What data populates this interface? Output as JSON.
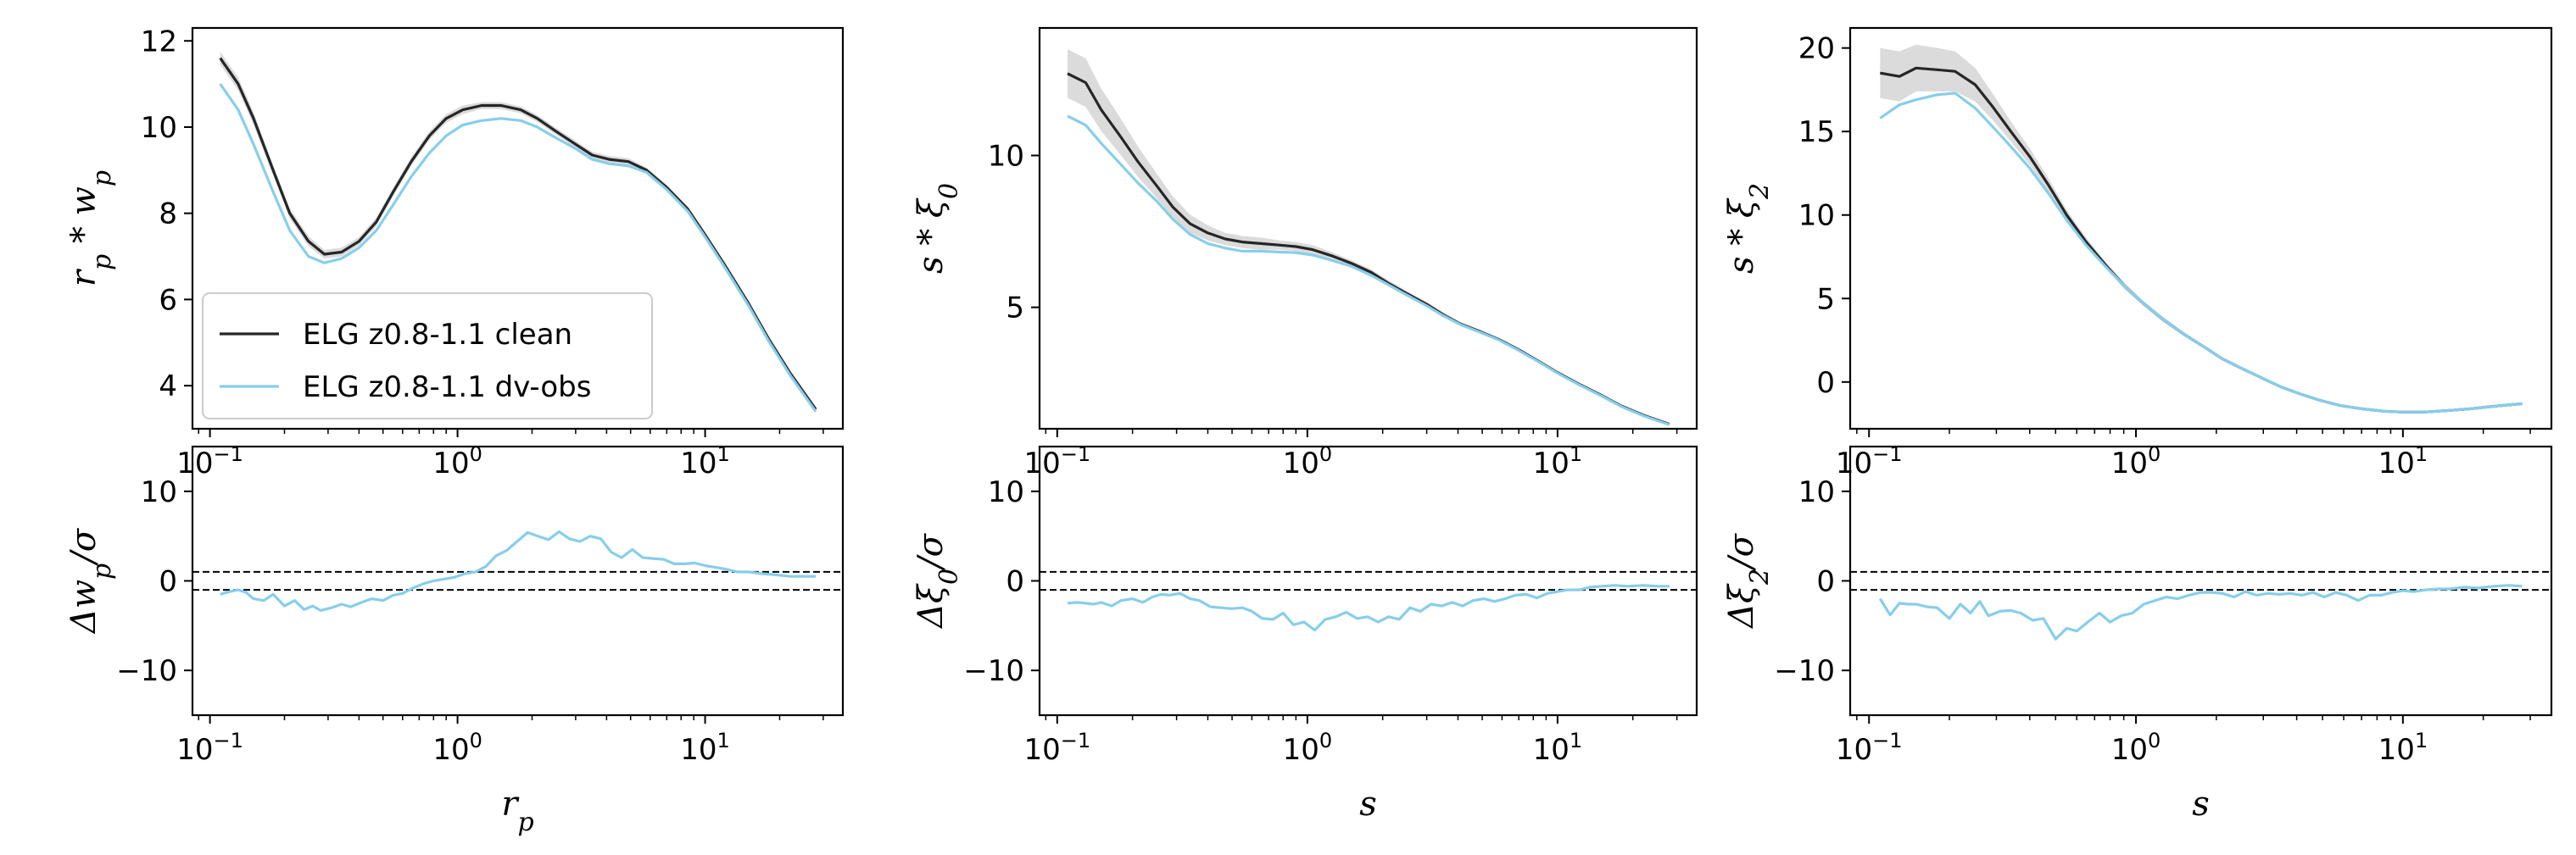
{
  "colors": {
    "clean": "#262626",
    "obs": "#87ceeb",
    "band": "#cfcfcf",
    "ref": "#000000"
  },
  "legend": {
    "placement": "lower-left",
    "items": [
      {
        "label": "ELG z0.8-1.1 clean",
        "series": "clean"
      },
      {
        "label": "ELG z0.8-1.1 dv-obs",
        "series": "obs"
      }
    ]
  },
  "chart_data": [
    {
      "id": "wp",
      "type": "line",
      "xscale": "log",
      "xlim": [
        0.085,
        36
      ],
      "ylim": [
        3.0,
        12.3
      ],
      "ylabel": "r_p * w_p",
      "yticks": [
        {
          "v": 4,
          "l": "4"
        },
        {
          "v": 6,
          "l": "6"
        },
        {
          "v": 8,
          "l": "8"
        },
        {
          "v": 10,
          "l": "10"
        },
        {
          "v": 12,
          "l": "12"
        }
      ],
      "x": [
        0.11,
        0.13,
        0.15,
        0.18,
        0.21,
        0.25,
        0.29,
        0.34,
        0.4,
        0.47,
        0.55,
        0.65,
        0.77,
        0.9,
        1.05,
        1.25,
        1.5,
        1.8,
        2.1,
        2.5,
        3.0,
        3.5,
        4.1,
        4.9,
        5.8,
        7.0,
        8.5,
        10,
        12,
        15,
        18,
        22,
        28
      ],
      "series": [
        {
          "key": "clean",
          "values": [
            11.6,
            11.0,
            10.2,
            9.0,
            8.0,
            7.35,
            7.05,
            7.1,
            7.35,
            7.8,
            8.5,
            9.2,
            9.8,
            10.2,
            10.4,
            10.5,
            10.5,
            10.4,
            10.2,
            9.9,
            9.6,
            9.35,
            9.25,
            9.2,
            9.0,
            8.6,
            8.1,
            7.5,
            6.8,
            5.9,
            5.1,
            4.3,
            3.45
          ],
          "band": [
            0.15,
            0.15,
            0.15,
            0.12,
            0.12,
            0.12,
            0.1,
            0.1,
            0.1,
            0.1,
            0.1,
            0.1,
            0.1,
            0.1,
            0.1,
            0.08,
            0.08,
            0.08,
            0.08,
            0.08,
            0.08,
            0.08,
            0.08,
            0.08,
            0.06,
            0.06,
            0.06,
            0.05,
            0.05,
            0.05,
            0.05,
            0.05,
            0.05
          ]
        },
        {
          "key": "obs",
          "values": [
            11.0,
            10.4,
            9.6,
            8.5,
            7.6,
            7.0,
            6.85,
            6.95,
            7.2,
            7.6,
            8.2,
            8.85,
            9.4,
            9.8,
            10.05,
            10.15,
            10.2,
            10.15,
            10.0,
            9.75,
            9.5,
            9.25,
            9.15,
            9.1,
            8.95,
            8.55,
            8.05,
            7.45,
            6.75,
            5.85,
            5.05,
            4.25,
            3.4
          ]
        }
      ]
    },
    {
      "id": "xi0",
      "type": "line",
      "xscale": "log",
      "xlim": [
        0.085,
        36
      ],
      "ylim": [
        1.0,
        14.2
      ],
      "ylabel": "s * ξ_0",
      "yticks": [
        {
          "v": 5,
          "l": "5"
        },
        {
          "v": 10,
          "l": "10"
        }
      ],
      "x": [
        0.11,
        0.13,
        0.15,
        0.18,
        0.21,
        0.25,
        0.29,
        0.34,
        0.4,
        0.47,
        0.55,
        0.65,
        0.77,
        0.9,
        1.05,
        1.25,
        1.5,
        1.8,
        2.1,
        2.5,
        3.0,
        3.5,
        4.1,
        4.9,
        5.8,
        7.0,
        8.5,
        10,
        12,
        15,
        18,
        22,
        28
      ],
      "series": [
        {
          "key": "clean",
          "values": [
            12.7,
            12.4,
            11.5,
            10.6,
            9.8,
            9.0,
            8.3,
            7.75,
            7.45,
            7.25,
            7.15,
            7.1,
            7.05,
            7.0,
            6.9,
            6.7,
            6.45,
            6.15,
            5.8,
            5.45,
            5.1,
            4.75,
            4.45,
            4.2,
            3.95,
            3.6,
            3.2,
            2.85,
            2.5,
            2.1,
            1.75,
            1.45,
            1.15
          ],
          "band": [
            0.8,
            0.8,
            0.7,
            0.6,
            0.5,
            0.4,
            0.35,
            0.3,
            0.25,
            0.2,
            0.2,
            0.2,
            0.15,
            0.15,
            0.15,
            0.12,
            0.1,
            0.1,
            0.1,
            0.08,
            0.08,
            0.08,
            0.06,
            0.06,
            0.05,
            0.05,
            0.05,
            0.04,
            0.04,
            0.04,
            0.03,
            0.03,
            0.03
          ]
        },
        {
          "key": "obs",
          "values": [
            11.3,
            11.0,
            10.4,
            9.7,
            9.1,
            8.5,
            7.9,
            7.4,
            7.1,
            6.95,
            6.85,
            6.85,
            6.82,
            6.8,
            6.72,
            6.55,
            6.35,
            6.05,
            5.75,
            5.4,
            5.05,
            4.72,
            4.43,
            4.18,
            3.93,
            3.58,
            3.18,
            2.83,
            2.48,
            2.08,
            1.73,
            1.43,
            1.13
          ]
        }
      ]
    },
    {
      "id": "xi2",
      "type": "line",
      "xscale": "log",
      "xlim": [
        0.085,
        36
      ],
      "ylim": [
        -2.8,
        21.2
      ],
      "ylabel": "s * ξ_2",
      "yticks": [
        {
          "v": 0,
          "l": "0"
        },
        {
          "v": 5,
          "l": "5"
        },
        {
          "v": 10,
          "l": "10"
        },
        {
          "v": 15,
          "l": "15"
        },
        {
          "v": 20,
          "l": "20"
        }
      ],
      "x": [
        0.11,
        0.13,
        0.15,
        0.18,
        0.21,
        0.25,
        0.29,
        0.34,
        0.4,
        0.47,
        0.55,
        0.65,
        0.77,
        0.9,
        1.05,
        1.25,
        1.5,
        1.8,
        2.1,
        2.5,
        3.0,
        3.5,
        4.1,
        4.9,
        5.8,
        7.0,
        8.5,
        10,
        12,
        15,
        18,
        22,
        28
      ],
      "series": [
        {
          "key": "clean",
          "values": [
            18.5,
            18.3,
            18.8,
            18.7,
            18.6,
            17.8,
            16.5,
            15.0,
            13.5,
            11.8,
            10.0,
            8.4,
            7.0,
            5.8,
            4.8,
            3.8,
            2.9,
            2.1,
            1.4,
            0.8,
            0.2,
            -0.3,
            -0.7,
            -1.1,
            -1.4,
            -1.6,
            -1.75,
            -1.8,
            -1.8,
            -1.7,
            -1.6,
            -1.45,
            -1.3
          ],
          "band": [
            1.5,
            1.5,
            1.4,
            1.3,
            1.2,
            1.0,
            0.8,
            0.6,
            0.5,
            0.4,
            0.3,
            0.25,
            0.2,
            0.2,
            0.15,
            0.15,
            0.12,
            0.1,
            0.1,
            0.1,
            0.08,
            0.08,
            0.06,
            0.06,
            0.05,
            0.05,
            0.05,
            0.05,
            0.05,
            0.04,
            0.04,
            0.04,
            0.04
          ]
        },
        {
          "key": "obs",
          "values": [
            15.8,
            16.6,
            16.9,
            17.2,
            17.3,
            16.4,
            15.3,
            14.1,
            12.8,
            11.3,
            9.7,
            8.2,
            6.9,
            5.8,
            4.8,
            3.8,
            2.9,
            2.1,
            1.4,
            0.8,
            0.2,
            -0.3,
            -0.7,
            -1.1,
            -1.4,
            -1.6,
            -1.75,
            -1.8,
            -1.8,
            -1.7,
            -1.6,
            -1.45,
            -1.3
          ]
        }
      ]
    },
    {
      "id": "dwp",
      "type": "line",
      "xscale": "log",
      "xlim": [
        0.085,
        36
      ],
      "ylim": [
        -15,
        15
      ],
      "ylabel": "Δw_p/σ",
      "xlabel": "r_p",
      "yticks": [
        {
          "v": -10,
          "l": "−10"
        },
        {
          "v": 0,
          "l": "0"
        },
        {
          "v": 10,
          "l": "10"
        }
      ],
      "reflines": [
        1,
        -1
      ],
      "x": [
        0.11,
        0.12,
        0.13,
        0.14,
        0.15,
        0.165,
        0.18,
        0.2,
        0.22,
        0.24,
        0.26,
        0.28,
        0.31,
        0.34,
        0.37,
        0.41,
        0.45,
        0.5,
        0.55,
        0.6,
        0.66,
        0.73,
        0.8,
        0.88,
        0.97,
        1.07,
        1.18,
        1.3,
        1.43,
        1.58,
        1.74,
        1.92,
        2.11,
        2.33,
        2.57,
        2.83,
        3.12,
        3.44,
        3.79,
        4.18,
        4.6,
        5.08,
        5.6,
        6.17,
        6.8,
        7.5,
        8.27,
        9.1,
        10,
        11,
        12.2,
        13.5,
        15,
        17,
        19,
        22,
        25,
        28
      ],
      "series": [
        {
          "key": "obs",
          "values": [
            -1.5,
            -1.2,
            -1.0,
            -1.3,
            -2.0,
            -2.2,
            -1.5,
            -2.8,
            -2.2,
            -3.2,
            -2.8,
            -3.3,
            -3.0,
            -2.6,
            -2.9,
            -2.4,
            -2.0,
            -2.2,
            -1.6,
            -1.4,
            -0.8,
            -0.3,
            0.0,
            0.2,
            0.4,
            0.8,
            1.0,
            1.6,
            2.8,
            3.4,
            4.4,
            5.4,
            5.0,
            4.6,
            5.5,
            4.7,
            4.4,
            5.0,
            4.7,
            3.2,
            2.6,
            3.5,
            2.6,
            2.5,
            2.4,
            1.9,
            1.9,
            2.0,
            1.7,
            1.5,
            1.3,
            1.0,
            1.0,
            0.8,
            0.7,
            0.5,
            0.5,
            0.5
          ]
        }
      ]
    },
    {
      "id": "dxi0",
      "type": "line",
      "xscale": "log",
      "xlim": [
        0.085,
        36
      ],
      "ylim": [
        -15,
        15
      ],
      "ylabel": "Δξ_0/σ",
      "xlabel": "s",
      "yticks": [
        {
          "v": -10,
          "l": "−10"
        },
        {
          "v": 0,
          "l": "0"
        },
        {
          "v": 10,
          "l": "10"
        }
      ],
      "reflines": [
        1,
        -1
      ],
      "x": [
        0.11,
        0.12,
        0.13,
        0.14,
        0.15,
        0.165,
        0.18,
        0.2,
        0.22,
        0.24,
        0.26,
        0.28,
        0.31,
        0.34,
        0.37,
        0.41,
        0.45,
        0.5,
        0.55,
        0.6,
        0.66,
        0.73,
        0.8,
        0.88,
        0.97,
        1.07,
        1.18,
        1.3,
        1.43,
        1.58,
        1.74,
        1.92,
        2.11,
        2.33,
        2.57,
        2.83,
        3.12,
        3.44,
        3.79,
        4.18,
        4.6,
        5.08,
        5.6,
        6.17,
        6.8,
        7.5,
        8.27,
        9.1,
        10,
        11,
        12.2,
        13.5,
        15,
        17,
        19,
        22,
        25,
        28
      ],
      "series": [
        {
          "key": "obs",
          "values": [
            -2.5,
            -2.4,
            -2.5,
            -2.6,
            -2.4,
            -2.8,
            -2.2,
            -2.0,
            -2.4,
            -1.8,
            -1.5,
            -1.6,
            -1.4,
            -2.0,
            -2.2,
            -2.9,
            -3.0,
            -3.1,
            -3.0,
            -3.4,
            -4.2,
            -4.3,
            -3.6,
            -4.9,
            -4.6,
            -5.5,
            -4.3,
            -4.0,
            -3.5,
            -4.2,
            -4.0,
            -4.6,
            -4.0,
            -4.3,
            -3.0,
            -3.4,
            -2.6,
            -2.8,
            -2.4,
            -2.8,
            -2.2,
            -2.0,
            -2.3,
            -2.0,
            -1.6,
            -1.5,
            -1.9,
            -1.4,
            -1.2,
            -1.0,
            -1.0,
            -0.7,
            -0.6,
            -0.5,
            -0.6,
            -0.5,
            -0.6,
            -0.6
          ]
        }
      ]
    },
    {
      "id": "dxi2",
      "type": "line",
      "xscale": "log",
      "xlim": [
        0.085,
        36
      ],
      "ylim": [
        -15,
        15
      ],
      "ylabel": "Δξ_2/σ",
      "xlabel": "s",
      "yticks": [
        {
          "v": -10,
          "l": "−10"
        },
        {
          "v": 0,
          "l": "0"
        },
        {
          "v": 10,
          "l": "10"
        }
      ],
      "reflines": [
        1,
        -1
      ],
      "x": [
        0.11,
        0.12,
        0.13,
        0.14,
        0.15,
        0.165,
        0.18,
        0.2,
        0.22,
        0.24,
        0.26,
        0.28,
        0.31,
        0.34,
        0.37,
        0.41,
        0.45,
        0.5,
        0.55,
        0.6,
        0.66,
        0.73,
        0.8,
        0.88,
        0.97,
        1.07,
        1.18,
        1.3,
        1.43,
        1.58,
        1.74,
        1.92,
        2.11,
        2.33,
        2.57,
        2.83,
        3.12,
        3.44,
        3.79,
        4.18,
        4.6,
        5.08,
        5.6,
        6.17,
        6.8,
        7.5,
        8.27,
        9.1,
        10,
        11,
        12.2,
        13.5,
        15,
        17,
        19,
        22,
        25,
        28
      ],
      "series": [
        {
          "key": "obs",
          "values": [
            -2.0,
            -3.8,
            -2.5,
            -2.6,
            -2.6,
            -2.9,
            -3.0,
            -4.2,
            -2.6,
            -3.6,
            -2.3,
            -3.9,
            -3.4,
            -3.3,
            -3.6,
            -4.4,
            -4.2,
            -6.5,
            -5.3,
            -5.6,
            -4.6,
            -3.6,
            -4.6,
            -3.9,
            -3.6,
            -2.6,
            -2.2,
            -1.8,
            -2.0,
            -1.6,
            -1.3,
            -1.3,
            -1.4,
            -1.8,
            -1.2,
            -1.6,
            -1.4,
            -1.5,
            -1.4,
            -1.6,
            -1.3,
            -1.8,
            -1.3,
            -1.6,
            -2.2,
            -1.6,
            -1.6,
            -1.3,
            -1.1,
            -1.2,
            -1.0,
            -0.9,
            -0.9,
            -0.7,
            -0.8,
            -0.6,
            -0.5,
            -0.6
          ]
        }
      ]
    }
  ]
}
